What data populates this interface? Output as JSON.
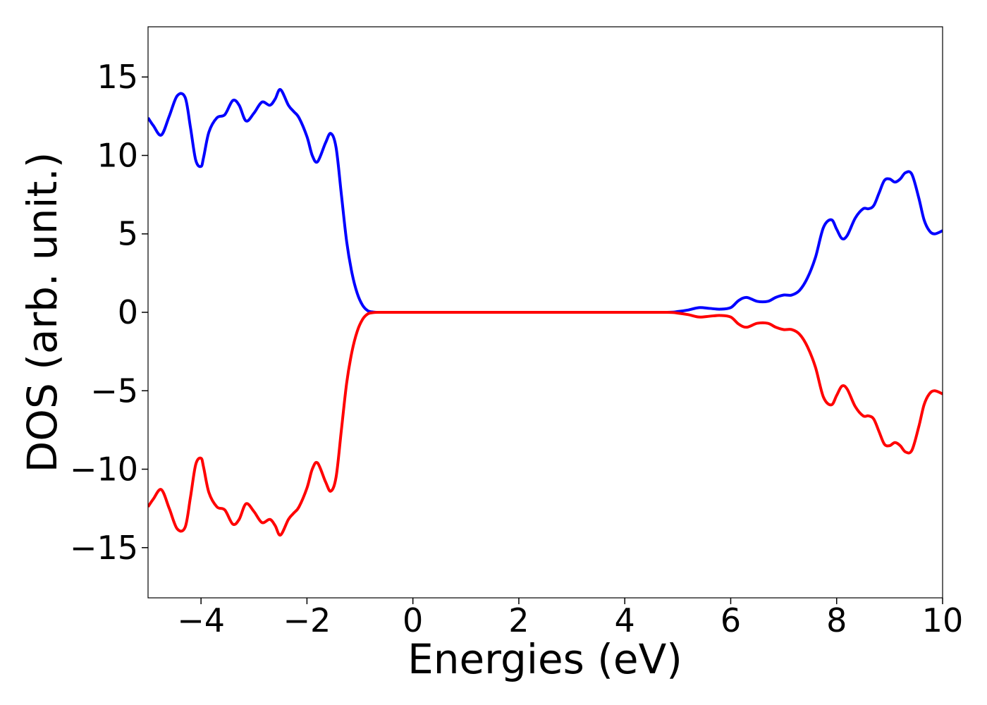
{
  "chart_data": {
    "type": "line",
    "title": "",
    "xlabel": "Energies (eV)",
    "ylabel": "DOS (arb. unit.)",
    "xlim": [
      -5,
      10
    ],
    "ylim": [
      -18.2,
      18.2
    ],
    "x_ticks": [
      -4,
      -2,
      0,
      2,
      4,
      6,
      8,
      10
    ],
    "x_tick_labels": [
      "−4",
      "−2",
      "0",
      "2",
      "4",
      "6",
      "8",
      "10"
    ],
    "y_ticks": [
      15,
      10,
      5,
      0,
      -5,
      -10,
      -15
    ],
    "y_tick_labels": [
      "15",
      "10",
      "5",
      "0",
      "−5",
      "−10",
      "−15"
    ],
    "grid": false,
    "legend": "none",
    "x": [
      -5.0,
      -4.9,
      -4.75,
      -4.6,
      -4.45,
      -4.3,
      -4.2,
      -4.1,
      -4.0,
      -3.95,
      -3.85,
      -3.7,
      -3.55,
      -3.4,
      -3.28,
      -3.15,
      -3.0,
      -2.85,
      -2.7,
      -2.6,
      -2.5,
      -2.35,
      -2.25,
      -2.15,
      -2.0,
      -1.9,
      -1.8,
      -1.65,
      -1.55,
      -1.45,
      -1.35,
      -1.25,
      -1.15,
      -1.05,
      -0.95,
      -0.85,
      -0.75,
      -0.65,
      -0.55,
      -0.45,
      0.0,
      1.0,
      2.0,
      3.0,
      4.0,
      4.8,
      5.0,
      5.2,
      5.4,
      5.6,
      5.8,
      6.0,
      6.15,
      6.3,
      6.5,
      6.7,
      6.85,
      7.0,
      7.15,
      7.3,
      7.45,
      7.6,
      7.75,
      7.9,
      8.0,
      8.1,
      8.2,
      8.35,
      8.5,
      8.6,
      8.7,
      8.8,
      8.9,
      9.0,
      9.1,
      9.2,
      9.3,
      9.42,
      9.55,
      9.65,
      9.75,
      9.85,
      10.0
    ],
    "series": [
      {
        "color": "#0000ff",
        "values": [
          12.4,
          11.9,
          11.3,
          12.5,
          13.8,
          13.7,
          11.8,
          9.7,
          9.3,
          9.9,
          11.5,
          12.4,
          12.6,
          13.5,
          13.2,
          12.2,
          12.7,
          13.4,
          13.2,
          13.6,
          14.2,
          13.2,
          12.8,
          12.4,
          11.2,
          10.0,
          9.6,
          10.8,
          11.4,
          10.5,
          7.5,
          4.5,
          2.5,
          1.2,
          0.45,
          0.1,
          0.02,
          0.0,
          0.0,
          0.0,
          0.0,
          0.0,
          0.0,
          0.0,
          0.0,
          0.0,
          0.05,
          0.15,
          0.3,
          0.25,
          0.2,
          0.3,
          0.75,
          0.95,
          0.7,
          0.7,
          0.95,
          1.1,
          1.1,
          1.4,
          2.2,
          3.5,
          5.4,
          5.9,
          5.3,
          4.7,
          4.9,
          6.0,
          6.6,
          6.6,
          6.8,
          7.6,
          8.4,
          8.5,
          8.3,
          8.5,
          8.9,
          8.8,
          7.3,
          5.9,
          5.2,
          5.0,
          5.2
        ]
      },
      {
        "color": "#ff0000",
        "values": [
          -12.4,
          -11.9,
          -11.3,
          -12.5,
          -13.8,
          -13.7,
          -11.8,
          -9.7,
          -9.3,
          -9.9,
          -11.5,
          -12.4,
          -12.6,
          -13.5,
          -13.2,
          -12.2,
          -12.7,
          -13.4,
          -13.2,
          -13.6,
          -14.2,
          -13.2,
          -12.8,
          -12.4,
          -11.2,
          -10.0,
          -9.6,
          -10.8,
          -11.4,
          -10.5,
          -7.5,
          -4.5,
          -2.5,
          -1.2,
          -0.45,
          -0.1,
          -0.02,
          0.0,
          0.0,
          0.0,
          0.0,
          0.0,
          0.0,
          0.0,
          0.0,
          0.0,
          -0.05,
          -0.15,
          -0.3,
          -0.25,
          -0.2,
          -0.3,
          -0.75,
          -0.95,
          -0.7,
          -0.7,
          -0.95,
          -1.1,
          -1.1,
          -1.4,
          -2.2,
          -3.5,
          -5.4,
          -5.9,
          -5.3,
          -4.7,
          -4.9,
          -6.0,
          -6.6,
          -6.6,
          -6.8,
          -7.6,
          -8.4,
          -8.5,
          -8.3,
          -8.5,
          -8.9,
          -8.8,
          -7.3,
          -5.9,
          -5.2,
          -5.0,
          -5.2
        ]
      }
    ]
  }
}
